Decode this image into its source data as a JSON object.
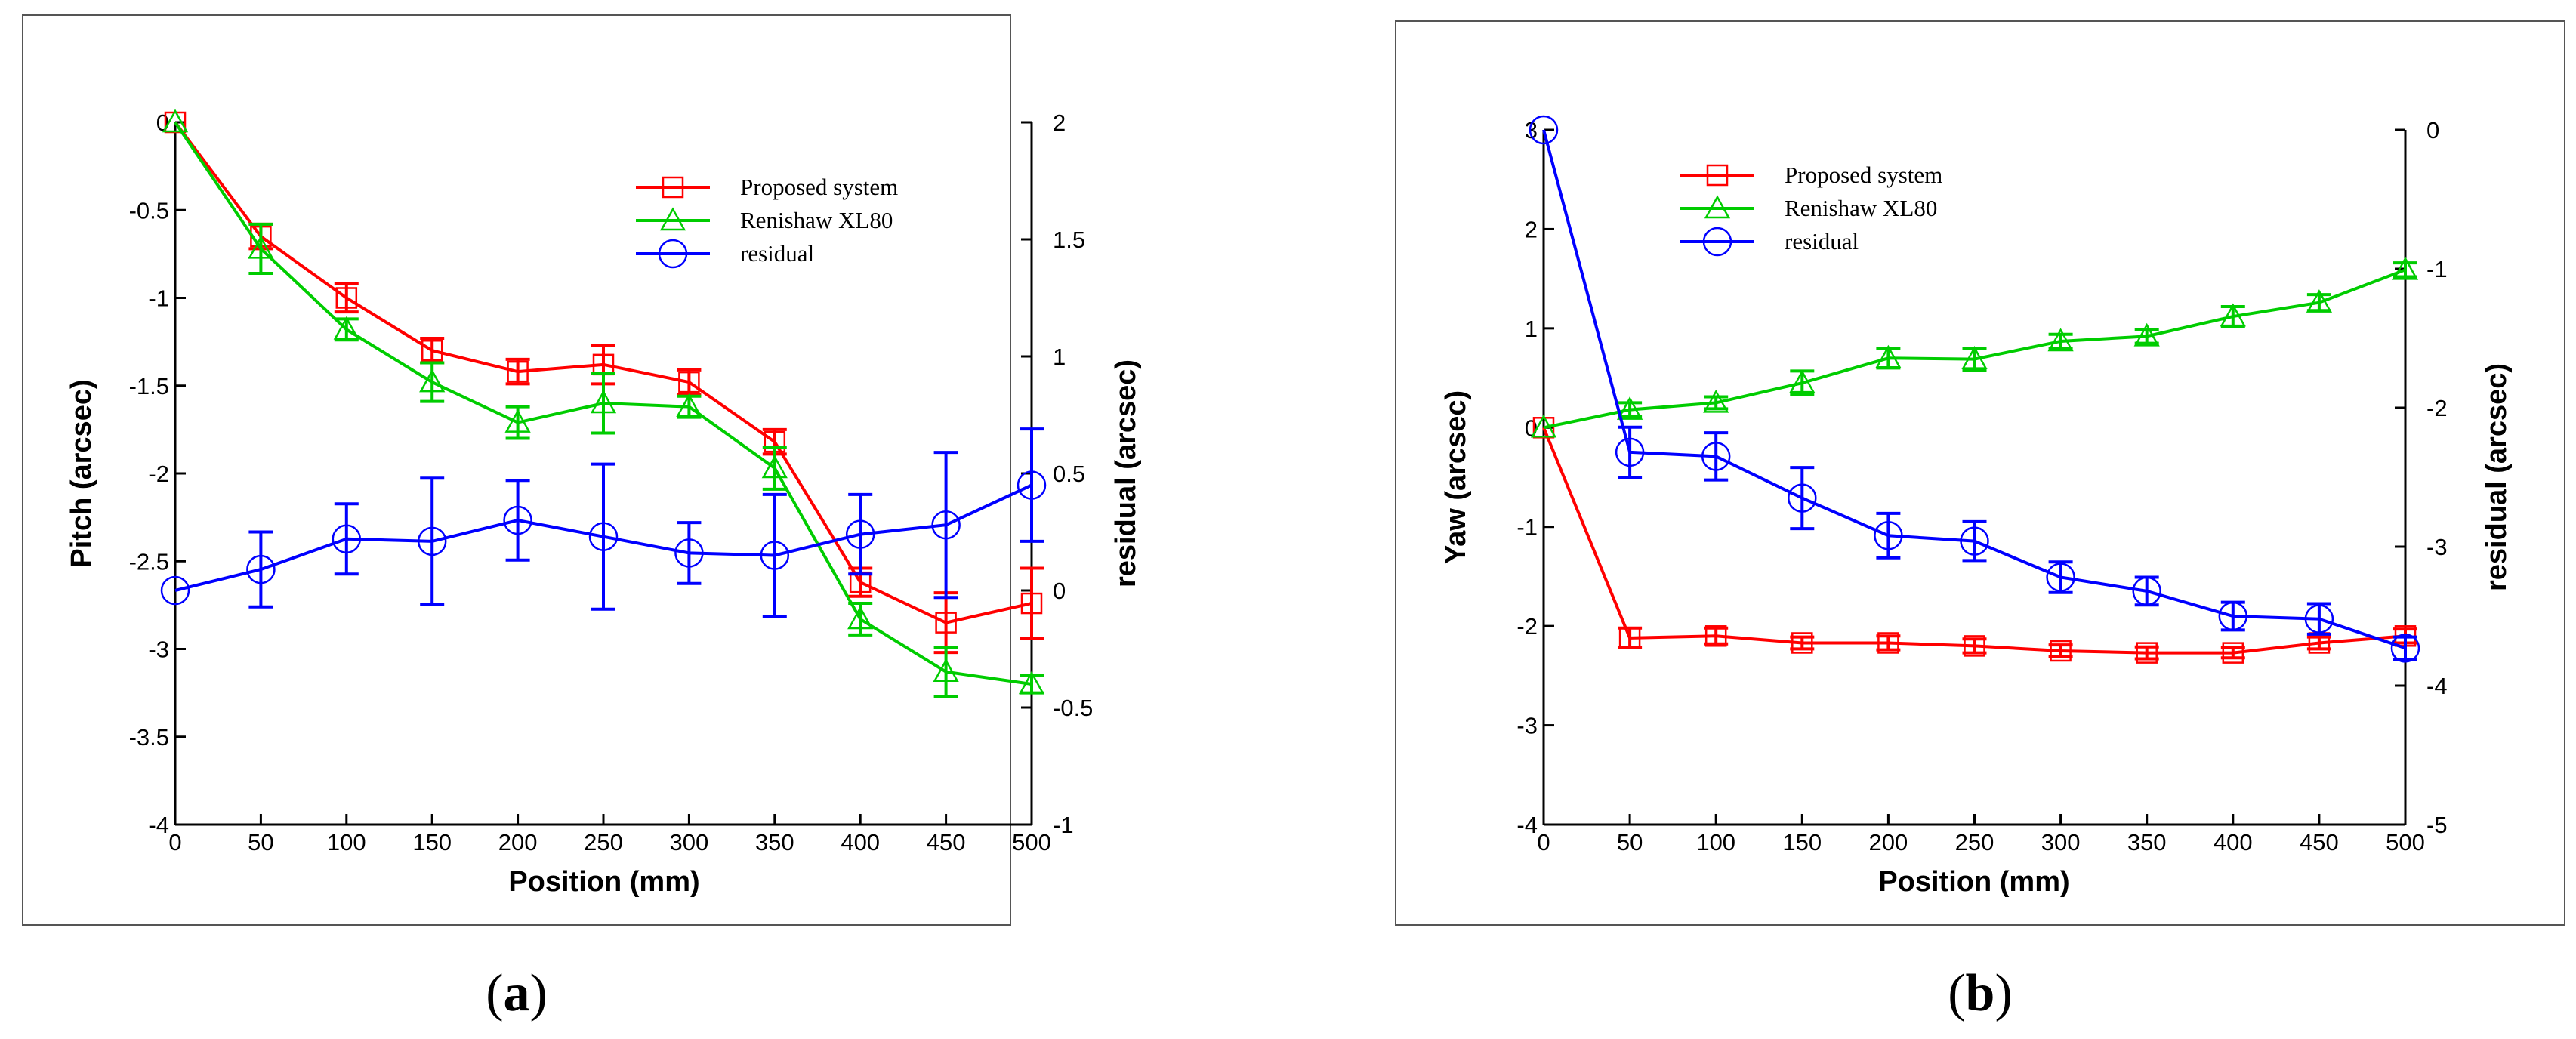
{
  "chart_data": [
    {
      "type": "line",
      "panel_label": "a",
      "xlabel": "Position (mm)",
      "ylabel": "Pitch (arcsec)",
      "y2label": "residual (arcsec)",
      "x": [
        0,
        50,
        100,
        150,
        200,
        250,
        300,
        350,
        400,
        450,
        500
      ],
      "xlim": [
        0,
        500
      ],
      "ylim": [
        -4,
        0
      ],
      "y2lim": [
        -1,
        2
      ],
      "xticks": [
        "0",
        "50",
        "100",
        "150",
        "200",
        "250",
        "300",
        "350",
        "400",
        "450",
        "500"
      ],
      "yticks": [
        "0",
        "-0.5",
        "-1",
        "-1.5",
        "-2",
        "-2.5",
        "-3",
        "-3.5",
        "-4"
      ],
      "y2ticks": [
        "2",
        "1.5",
        "1",
        "0.5",
        "0",
        "-0.5",
        "-1"
      ],
      "legend_position": "top-right",
      "series": [
        {
          "name": "Proposed system",
          "axis": "left",
          "marker": "square",
          "color": "#ff0000",
          "values": [
            0,
            -0.65,
            -1.0,
            -1.3,
            -1.42,
            -1.38,
            -1.48,
            -1.82,
            -2.62,
            -2.85,
            -2.74
          ],
          "errors": [
            0,
            0.07,
            0.08,
            0.07,
            0.07,
            0.11,
            0.07,
            0.07,
            0.08,
            0.17,
            0.2
          ]
        },
        {
          "name": "Renishaw XL80",
          "axis": "left",
          "marker": "triangle",
          "color": "#00cc00",
          "values": [
            0,
            -0.72,
            -1.18,
            -1.48,
            -1.71,
            -1.6,
            -1.62,
            -1.97,
            -2.83,
            -3.13,
            -3.2
          ],
          "errors": [
            0,
            0.14,
            0.06,
            0.11,
            0.09,
            0.17,
            0.06,
            0.12,
            0.09,
            0.14,
            0.05
          ]
        },
        {
          "name": "residual",
          "axis": "right",
          "marker": "circle",
          "color": "#0000ff",
          "values": [
            0,
            0.09,
            0.22,
            0.21,
            0.3,
            0.23,
            0.16,
            0.15,
            0.24,
            0.28,
            0.45
          ],
          "errors": [
            0,
            0.16,
            0.15,
            0.27,
            0.17,
            0.31,
            0.13,
            0.26,
            0.17,
            0.31,
            0.24
          ]
        }
      ]
    },
    {
      "type": "line",
      "panel_label": "b",
      "xlabel": "Position (mm)",
      "ylabel": "Yaw (arcsec)",
      "y2label": "residual (arcsec)",
      "x": [
        0,
        50,
        100,
        150,
        200,
        250,
        300,
        350,
        400,
        450,
        500
      ],
      "xlim": [
        0,
        500
      ],
      "ylim": [
        -4,
        3
      ],
      "y2lim": [
        -5,
        0
      ],
      "xticks": [
        "0",
        "50",
        "100",
        "150",
        "200",
        "250",
        "300",
        "350",
        "400",
        "450",
        "500"
      ],
      "yticks": [
        "3",
        "2",
        "1",
        "0",
        "-1",
        "-2",
        "-3",
        "-4"
      ],
      "y2ticks": [
        "0",
        "-1",
        "-2",
        "-3",
        "-4",
        "-5"
      ],
      "legend_position": "top-left",
      "series": [
        {
          "name": "Proposed system",
          "axis": "left",
          "marker": "square",
          "color": "#ff0000",
          "values": [
            0,
            -2.12,
            -2.1,
            -2.17,
            -2.17,
            -2.2,
            -2.25,
            -2.27,
            -2.27,
            -2.17,
            -2.1
          ],
          "errors": [
            0,
            0.1,
            0.08,
            0.06,
            0.07,
            0.07,
            0.06,
            0.06,
            0.05,
            0.06,
            0.07
          ]
        },
        {
          "name": "Renishaw XL80",
          "axis": "left",
          "marker": "triangle",
          "color": "#00cc00",
          "values": [
            0,
            0.18,
            0.25,
            0.45,
            0.7,
            0.69,
            0.87,
            0.92,
            1.12,
            1.26,
            1.59
          ],
          "errors": [
            0,
            0.07,
            0.06,
            0.12,
            0.1,
            0.11,
            0.07,
            0.07,
            0.1,
            0.08,
            0.07
          ]
        },
        {
          "name": "residual",
          "axis": "right",
          "marker": "circle",
          "color": "#0000ff",
          "values": [
            0,
            -2.32,
            -2.35,
            -2.65,
            -2.92,
            -2.96,
            -3.22,
            -3.32,
            -3.5,
            -3.52,
            -3.73
          ],
          "errors": [
            0,
            0.18,
            0.17,
            0.22,
            0.16,
            0.14,
            0.11,
            0.1,
            0.1,
            0.11,
            0.08
          ]
        }
      ]
    }
  ]
}
